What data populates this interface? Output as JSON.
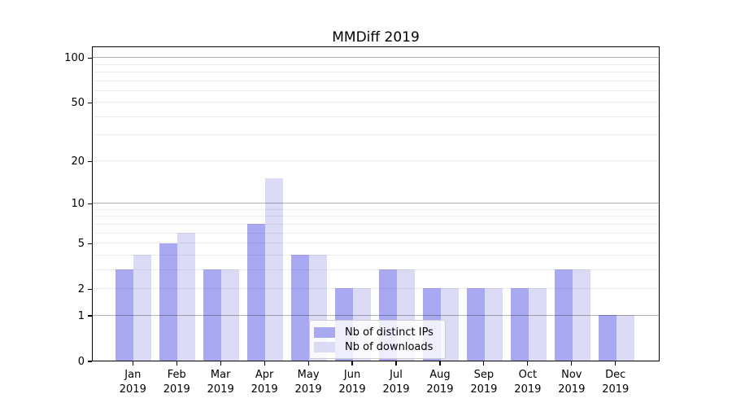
{
  "title": "MMDiff 2019",
  "chart_data": {
    "type": "bar",
    "title": "MMDiff 2019",
    "categories": [
      "Jan",
      "Feb",
      "Mar",
      "Apr",
      "May",
      "Jun",
      "Jul",
      "Aug",
      "Sep",
      "Oct",
      "Nov",
      "Dec"
    ],
    "category_year": "2019",
    "series": [
      {
        "name": "Nb of distinct IPs",
        "color": "#a9a9f1",
        "values": [
          3,
          5,
          3,
          7,
          4,
          2,
          3,
          2,
          2,
          2,
          3,
          1
        ]
      },
      {
        "name": "Nb of downloads",
        "color": "#dbdbf6",
        "values": [
          4,
          6,
          3,
          15,
          4,
          2,
          3,
          2,
          2,
          2,
          3,
          1
        ]
      }
    ],
    "xlabel": "",
    "ylabel": "",
    "yscale": "log1p",
    "ylim": [
      0,
      121
    ],
    "y_ticks": [
      0,
      1,
      2,
      5,
      10,
      20,
      50,
      100
    ],
    "minor_gridlines": [
      2,
      3,
      4,
      5,
      6,
      7,
      8,
      9,
      20,
      30,
      40,
      50,
      60,
      70,
      80,
      90
    ],
    "major_gridlines": [
      1,
      10,
      100
    ],
    "grid": true,
    "grid_above_bars": true,
    "legend_position": "lower-center-inside"
  },
  "colors": {
    "background": "#ffffff",
    "axis": "#000000",
    "major_grid": "#b0b0b0",
    "minor_grid": "#e8e8e8",
    "bar_distinct_ips": "#a9a9f1",
    "bar_downloads": "#dbdbf6",
    "legend_border": "#cccccc"
  }
}
